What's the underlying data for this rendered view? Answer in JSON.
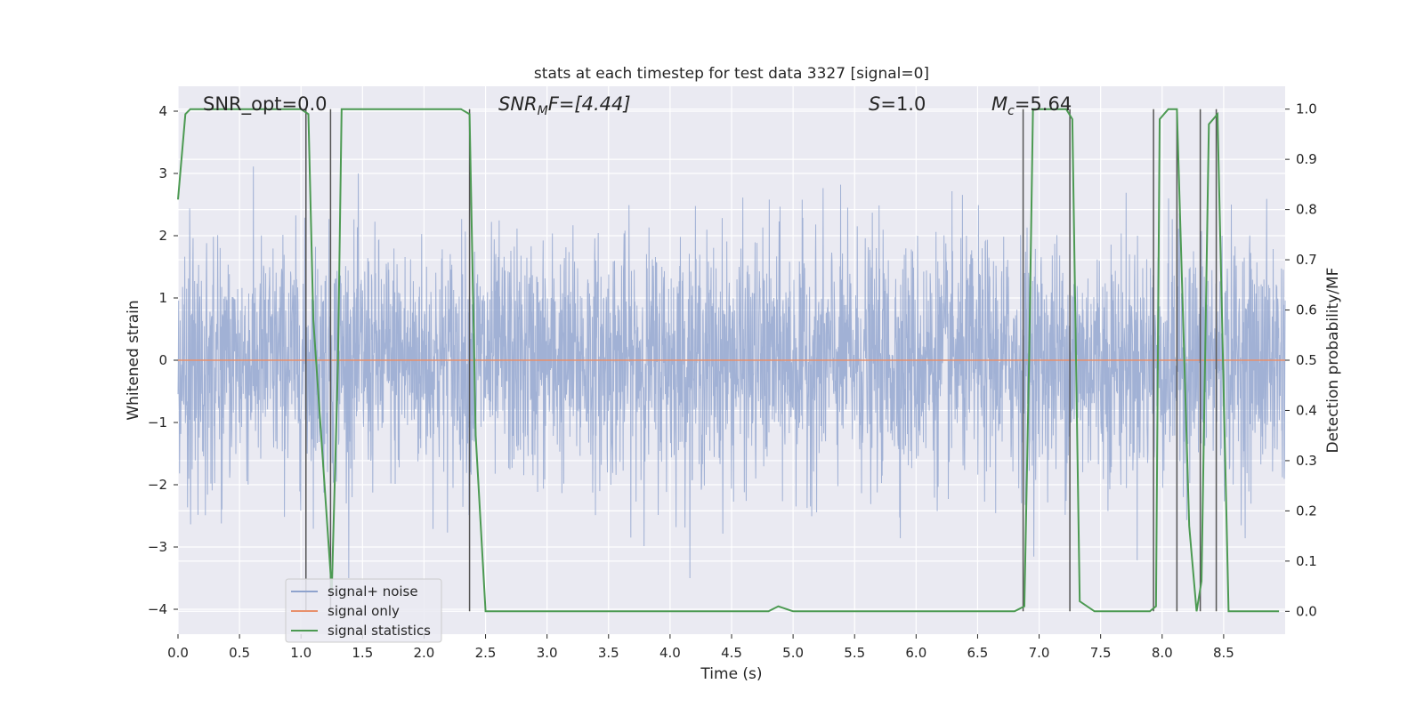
{
  "chart_data": {
    "type": "line",
    "title": "stats at each timestep for test data 3327 [signal=0]",
    "xlabel": "Time (s)",
    "ylabel": "Whitened strain",
    "ylabel_right": "Detection probability/MF",
    "xlim": [
      0.0,
      9.0
    ],
    "ylim": [
      -4.4,
      4.4
    ],
    "ylim_right": [
      -0.0455,
      1.0455
    ],
    "x_ticks": [
      "0.0",
      "0.5",
      "1.0",
      "1.5",
      "2.0",
      "2.5",
      "3.0",
      "3.5",
      "4.0",
      "4.5",
      "5.0",
      "5.5",
      "6.0",
      "6.5",
      "7.0",
      "7.5",
      "8.0",
      "8.5"
    ],
    "y_ticks": [
      "−4",
      "−3",
      "−2",
      "−1",
      "0",
      "1",
      "2",
      "3",
      "4"
    ],
    "y_ticks_right": [
      "0.0",
      "0.1",
      "0.2",
      "0.3",
      "0.4",
      "0.5",
      "0.6",
      "0.7",
      "0.8",
      "0.9",
      "1.0"
    ],
    "annotations": {
      "snr_opt": "SNR_opt=0.0",
      "snr_mf_main": "SNR",
      "snr_mf_sub": "M",
      "snr_mf_rest": "F=[4.44]",
      "s_main": "S",
      "s_rest": "=1.0",
      "mc_main": "M",
      "mc_sub": "c",
      "mc_rest": "=5.64"
    },
    "legend": {
      "placement": "lower-left",
      "entries": [
        "signal+ noise",
        "signal only",
        "signal statistics"
      ]
    },
    "grid": true,
    "colors": {
      "noise": "#8fa3cd",
      "signal_only": "#e8906c",
      "statistics": "#4c9a52",
      "vlines": "#555555",
      "axes_bg": "#eaeaf2",
      "grid": "#ffffff"
    },
    "series": [
      {
        "name": "signal+ noise",
        "style": "dense noise trace, roughly Gaussian, amplitude mostly within ±2, peaks near ±3.5",
        "amplitude_std": 0.95,
        "peak_abs": 3.5
      },
      {
        "name": "signal only",
        "x": [
          0.0,
          9.0
        ],
        "y": [
          0.0,
          0.0
        ]
      },
      {
        "name": "signal statistics",
        "axis": "right",
        "x": [
          0.0,
          0.06,
          0.1,
          0.15,
          1.0,
          1.06,
          1.1,
          1.25,
          1.3,
          1.33,
          1.4,
          1.5,
          2.3,
          2.37,
          2.42,
          2.5,
          4.65,
          4.8,
          4.88,
          5.0,
          6.8,
          6.88,
          6.92,
          6.95,
          7.22,
          7.27,
          7.33,
          7.45,
          7.9,
          7.95,
          7.98,
          8.05,
          8.12,
          8.22,
          8.28,
          8.32,
          8.38,
          8.45,
          8.54,
          8.95
        ],
        "y": [
          0.82,
          0.99,
          1.0,
          1.0,
          1.0,
          0.99,
          0.58,
          0.04,
          0.49,
          1.0,
          1.0,
          1.0,
          1.0,
          0.99,
          0.35,
          0.0,
          0.0,
          0.0,
          0.01,
          0.0,
          0.0,
          0.01,
          0.52,
          1.0,
          1.0,
          0.98,
          0.02,
          0.0,
          0.0,
          0.01,
          0.98,
          1.0,
          1.0,
          0.17,
          0.0,
          0.06,
          0.97,
          0.99,
          0.0,
          0.0
        ]
      }
    ],
    "vertical_lines_x": [
      1.04,
      1.24,
      2.37,
      6.87,
      7.25,
      7.93,
      8.12,
      8.31,
      8.44
    ]
  }
}
